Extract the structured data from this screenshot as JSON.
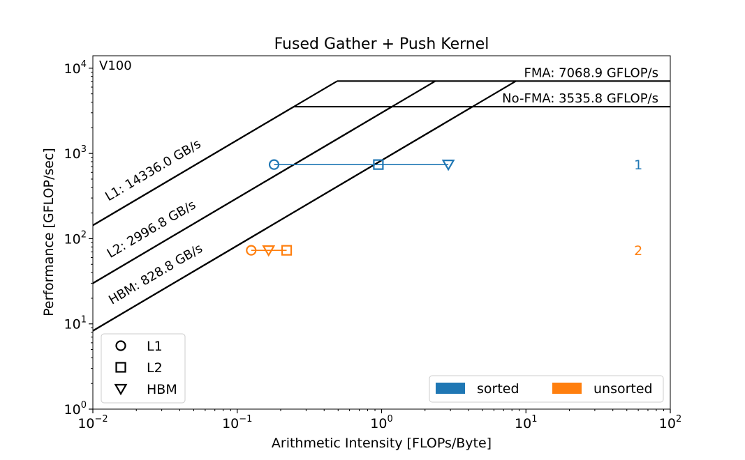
{
  "chart_data": {
    "type": "scatter",
    "title": "Fused Gather + Push Kernel",
    "xlabel": "Arithmetic Intensity [FLOPs/Byte]",
    "ylabel": "Performance [GFLOP/sec]",
    "x_scale": "log",
    "y_scale": "log",
    "xlim": [
      0.01,
      100
    ],
    "ylim": [
      1,
      14000
    ],
    "x_ticks": [
      {
        "base": "10",
        "exp": "−2",
        "value": 0.01
      },
      {
        "base": "10",
        "exp": "−1",
        "value": 0.1
      },
      {
        "base": "10",
        "exp": "0",
        "value": 1
      },
      {
        "base": "10",
        "exp": "1",
        "value": 10
      },
      {
        "base": "10",
        "exp": "2",
        "value": 100
      }
    ],
    "y_ticks": [
      {
        "base": "10",
        "exp": "0",
        "value": 1
      },
      {
        "base": "10",
        "exp": "1",
        "value": 10
      },
      {
        "base": "10",
        "exp": "2",
        "value": 100
      },
      {
        "base": "10",
        "exp": "3",
        "value": 1000
      },
      {
        "base": "10",
        "exp": "4",
        "value": 10000
      }
    ],
    "device_label": "V100",
    "ceilings": [
      {
        "label": "FMA: 7068.9 GFLOP/s",
        "value": 7068.9
      },
      {
        "label": "No-FMA: 3535.8 GFLOP/s",
        "value": 3535.8
      }
    ],
    "bandwidths": [
      {
        "label": "L1: 14336.0 GB/s",
        "value": 14336.0
      },
      {
        "label": "L2: 2996.8 GB/s",
        "value": 2996.8
      },
      {
        "label": "HBM: 828.8 GB/s",
        "value": 828.8
      }
    ],
    "series": [
      {
        "name": "sorted",
        "color": "#1f77b4",
        "index_label": "1",
        "points": [
          {
            "level": "L1",
            "x": 0.18,
            "y": 740
          },
          {
            "level": "L2",
            "x": 0.95,
            "y": 740
          },
          {
            "level": "HBM",
            "x": 2.9,
            "y": 740
          }
        ]
      },
      {
        "name": "unsorted",
        "color": "#ff7f0e",
        "index_label": "2",
        "points": [
          {
            "level": "L1",
            "x": 0.125,
            "y": 73
          },
          {
            "level": "L2",
            "x": 0.22,
            "y": 73
          },
          {
            "level": "HBM",
            "x": 0.165,
            "y": 73
          }
        ]
      }
    ],
    "marker_legend": [
      {
        "level": "L1",
        "label": "L1",
        "marker": "circle"
      },
      {
        "level": "L2",
        "label": "L2",
        "marker": "square"
      },
      {
        "level": "HBM",
        "label": "HBM",
        "marker": "triangle-down"
      }
    ],
    "grid": false,
    "marker_legend_position": "lower-left",
    "series_legend_position": "lower-right"
  }
}
